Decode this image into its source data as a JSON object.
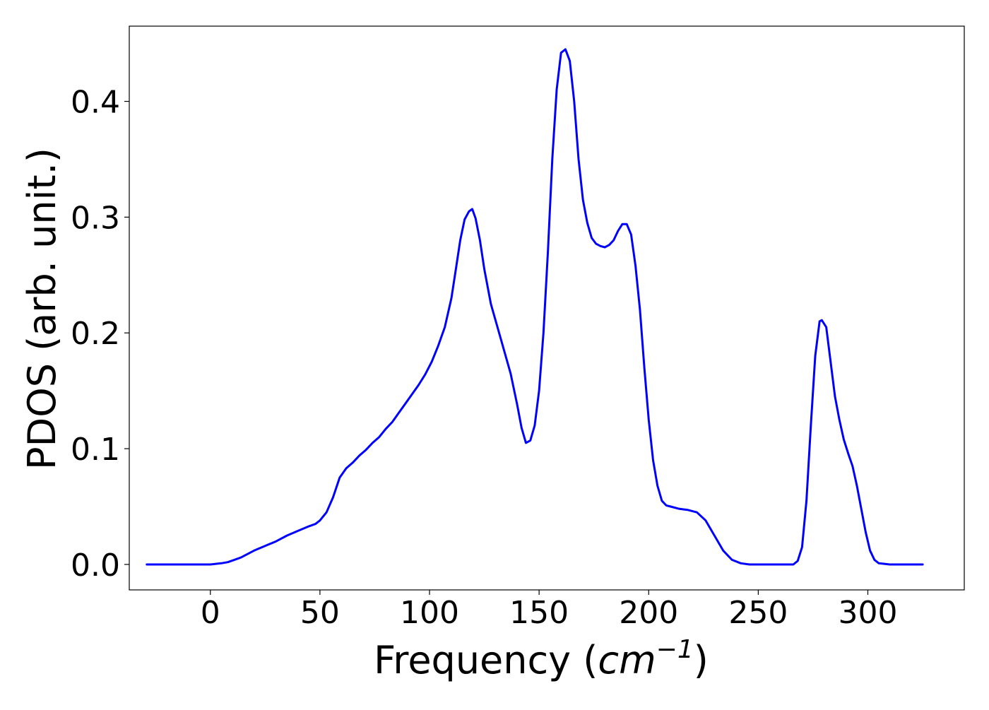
{
  "chart_data": {
    "type": "line",
    "title": "",
    "xlabel_main": "Frequency (",
    "xlabel_unit_base": "cm",
    "xlabel_unit_exp": "−1",
    "xlabel_close": ")",
    "ylabel": "PDOS (arb. unit.)",
    "xlim": [
      -37,
      344
    ],
    "ylim": [
      -0.022,
      0.465
    ],
    "xticks": [
      0,
      50,
      100,
      150,
      200,
      250,
      300
    ],
    "xtick_labels": [
      "0",
      "50",
      "100",
      "150",
      "200",
      "250",
      "300"
    ],
    "yticks": [
      0.0,
      0.1,
      0.2,
      0.3,
      0.4
    ],
    "ytick_labels": [
      "0.0",
      "0.1",
      "0.2",
      "0.3",
      "0.4"
    ],
    "grid": false,
    "series": [
      {
        "color": "#0000ff",
        "x": [
          -29,
          -20,
          -10,
          0,
          5,
          8,
          11,
          14,
          17,
          20,
          25,
          30,
          35,
          40,
          45,
          48,
          50,
          53,
          56,
          59,
          62,
          65,
          68,
          71,
          74,
          77,
          80,
          83,
          86,
          89,
          92,
          95,
          98,
          101,
          104,
          107,
          110,
          112,
          114,
          116,
          118,
          119.5,
          121,
          123,
          125,
          128,
          131,
          134,
          137,
          140,
          142,
          144,
          146,
          148,
          150,
          152,
          154,
          156,
          158,
          160,
          162,
          164,
          166,
          168,
          170,
          172,
          174,
          176,
          178,
          180,
          182,
          184,
          186,
          188,
          190,
          192,
          194,
          196,
          198,
          200,
          202,
          204,
          206,
          208,
          210,
          214,
          218,
          222,
          226,
          230,
          234,
          238,
          242,
          246,
          250,
          255,
          260,
          266,
          268,
          270,
          272,
          274,
          276,
          278,
          279,
          281,
          283,
          285,
          287,
          289,
          291,
          293,
          295,
          297,
          299,
          301,
          303,
          305,
          310,
          315,
          325
        ],
        "y": [
          0.0,
          0.0,
          0.0,
          0.0,
          0.001,
          0.002,
          0.004,
          0.006,
          0.009,
          0.012,
          0.016,
          0.02,
          0.025,
          0.029,
          0.033,
          0.035,
          0.038,
          0.045,
          0.058,
          0.075,
          0.083,
          0.088,
          0.094,
          0.099,
          0.105,
          0.11,
          0.117,
          0.123,
          0.131,
          0.139,
          0.147,
          0.155,
          0.164,
          0.175,
          0.189,
          0.205,
          0.23,
          0.255,
          0.28,
          0.298,
          0.305,
          0.307,
          0.299,
          0.28,
          0.255,
          0.225,
          0.205,
          0.185,
          0.165,
          0.138,
          0.118,
          0.105,
          0.107,
          0.12,
          0.15,
          0.2,
          0.27,
          0.35,
          0.41,
          0.442,
          0.445,
          0.435,
          0.4,
          0.35,
          0.315,
          0.295,
          0.282,
          0.277,
          0.275,
          0.274,
          0.276,
          0.28,
          0.288,
          0.294,
          0.294,
          0.285,
          0.258,
          0.22,
          0.17,
          0.125,
          0.09,
          0.068,
          0.055,
          0.051,
          0.05,
          0.048,
          0.047,
          0.045,
          0.038,
          0.025,
          0.012,
          0.004,
          0.001,
          0.0,
          0.0,
          0.0,
          0.0,
          0.0,
          0.003,
          0.015,
          0.055,
          0.12,
          0.18,
          0.21,
          0.211,
          0.205,
          0.175,
          0.145,
          0.125,
          0.108,
          0.096,
          0.085,
          0.068,
          0.048,
          0.028,
          0.012,
          0.004,
          0.001,
          0.0,
          0.0,
          0.0
        ]
      }
    ]
  }
}
